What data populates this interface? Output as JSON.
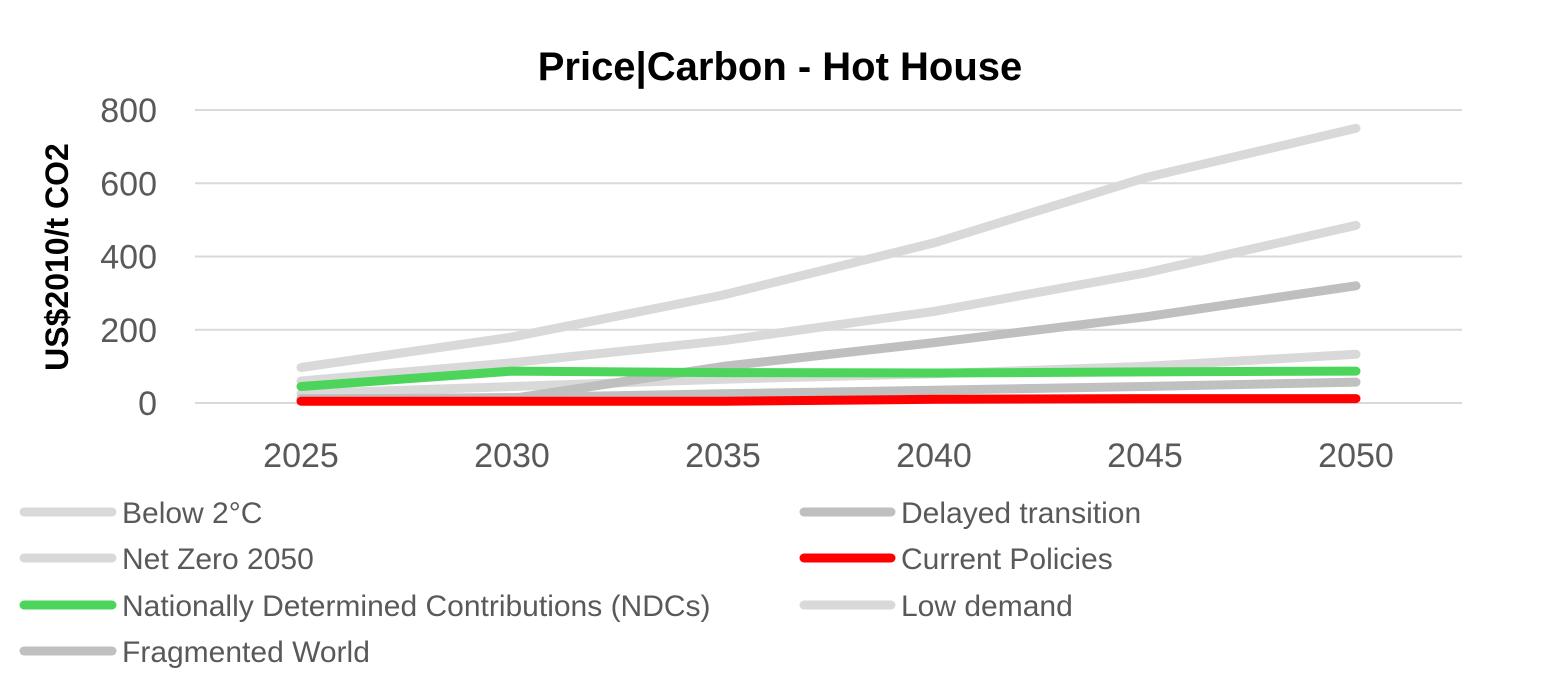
{
  "chart_data": {
    "type": "line",
    "title": "Price|Carbon - Hot House",
    "xlabel": "",
    "ylabel": "US$2010/t CO2",
    "categories": [
      "2025",
      "2030",
      "2035",
      "2040",
      "2045",
      "2050"
    ],
    "ylim": [
      0,
      800
    ],
    "yticks": [
      "0",
      "200",
      "400",
      "600",
      "800"
    ],
    "grid": true,
    "legend_position": "bottom",
    "series": [
      {
        "name": "Below 2°C",
        "color": "#d9d9d9",
        "values": [
          60,
          110,
          170,
          250,
          355,
          485
        ]
      },
      {
        "name": "Net Zero 2050",
        "color": "#d9d9d9",
        "values": [
          97,
          180,
          295,
          437,
          615,
          750
        ]
      },
      {
        "name": "Low demand",
        "color": "#d9d9d9",
        "values": [
          25,
          45,
          65,
          80,
          100,
          133
        ]
      },
      {
        "name": "Fragmented World",
        "color": "#c0c0c0",
        "values": [
          10,
          15,
          25,
          35,
          45,
          57
        ]
      },
      {
        "name": "Delayed transition",
        "color": "#bfbfbf",
        "values": [
          12,
          12,
          100,
          165,
          235,
          320
        ]
      },
      {
        "name": "Nationally Determined Contributions (NDCs)",
        "color": "#4cd55a",
        "values": [
          45,
          87,
          83,
          82,
          85,
          87
        ]
      },
      {
        "name": "Current Policies",
        "color": "#ff0000",
        "values": [
          5,
          5,
          5,
          10,
          12,
          12
        ]
      }
    ],
    "legend_left": [
      "Below 2°C",
      "Net Zero 2050",
      "Nationally Determined Contributions (NDCs)",
      "Fragmented World"
    ],
    "legend_right": [
      "Delayed transition",
      "Current Policies",
      "Low demand"
    ]
  }
}
